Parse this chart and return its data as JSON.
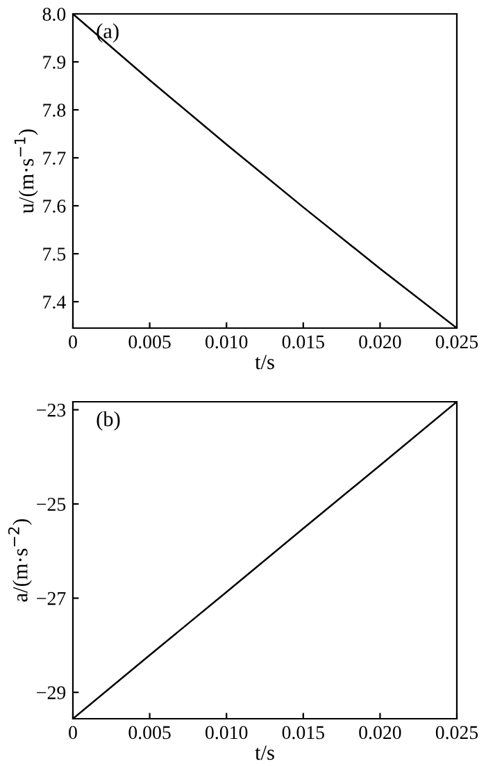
{
  "chart_data": [
    {
      "type": "line",
      "xlabel": "t/s",
      "ylabel": "u/(m·s$^{−1}$)",
      "annotations": [
        "(a)"
      ],
      "x": [
        0,
        0.005,
        0.01,
        0.015,
        0.02,
        0.025
      ],
      "series": [
        {
          "color": "#000000",
          "values": [
            8.0,
            7.862,
            7.728,
            7.597,
            7.469,
            7.345
          ]
        }
      ],
      "xlim": [
        0,
        0.025
      ],
      "xticks": [
        {
          "value": 0,
          "label": "0"
        },
        0.005,
        {
          "value": 0.01,
          "label": "0.010"
        },
        0.015,
        {
          "value": 0.02,
          "label": "0.020"
        },
        0.025
      ],
      "ylim": [
        7.345,
        8.0
      ],
      "yticks": [
        7.4,
        7.5,
        7.6,
        7.7,
        7.8,
        7.9,
        {
          "value": 8.0,
          "label": "8.0"
        }
      ],
      "grid": false,
      "legend": false
    },
    {
      "type": "line",
      "xlabel": "t/s",
      "ylabel": "a/(m·s$^{−2}$)",
      "annotations": [
        "(b)"
      ],
      "x": [
        0,
        0.005,
        0.01,
        0.015,
        0.02,
        0.025
      ],
      "series": [
        {
          "color": "#000000",
          "values": [
            -29.56,
            -28.21,
            -26.87,
            -25.52,
            -24.18,
            -22.83
          ]
        }
      ],
      "xlim": [
        0,
        0.025
      ],
      "xticks": [
        {
          "value": 0,
          "label": "0"
        },
        0.005,
        {
          "value": 0.01,
          "label": "0.010"
        },
        0.015,
        {
          "value": 0.02,
          "label": "0.020"
        },
        0.025
      ],
      "ylim": [
        -29.56,
        -22.83
      ],
      "yticks": [
        {
          "value": -29,
          "label": "−29"
        },
        {
          "value": -27,
          "label": "−27"
        },
        {
          "value": -25,
          "label": "−25"
        },
        {
          "value": -23,
          "label": "−23"
        }
      ],
      "grid": false,
      "legend": false
    }
  ]
}
